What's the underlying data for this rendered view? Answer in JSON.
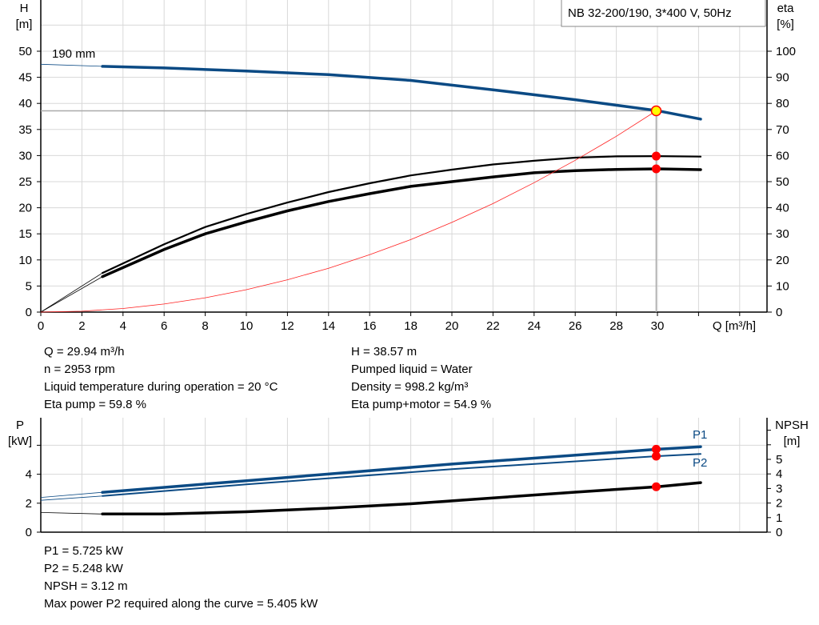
{
  "title_box": "NB 32-200/190, 3*400 V, 50Hz",
  "colors": {
    "head": "#0b4a84",
    "efficiency": "#000000",
    "system": "#ff2020",
    "duty_point": "#ff0000",
    "duty_point_fill": "#ffff00",
    "grid": "#d8d8d8"
  },
  "chart_data": [
    {
      "type": "line",
      "xlabel": "Q [m³/h]",
      "ylabel_left": [
        "H",
        "[m]"
      ],
      "ylabel_right": [
        "eta",
        "[%]"
      ],
      "xlim": [
        0,
        35
      ],
      "ylim_left": [
        0,
        55
      ],
      "ylim_right": [
        0,
        110
      ],
      "x_ticks": [
        0,
        2,
        4,
        6,
        8,
        10,
        12,
        14,
        16,
        18,
        20,
        22,
        24,
        26,
        28,
        30
      ],
      "y_ticks_left": [
        0,
        5,
        10,
        15,
        20,
        25,
        30,
        35,
        40,
        45,
        50
      ],
      "y_ticks_right": [
        0,
        10,
        20,
        30,
        40,
        50,
        60,
        70,
        80,
        90,
        100
      ],
      "grid": true,
      "annotation": "190 mm",
      "series": [
        {
          "id": "head",
          "axis": "left",
          "color": "#0b4a84",
          "x": [
            0,
            3,
            6,
            10,
            14,
            18,
            22,
            26,
            30,
            32.1
          ],
          "y": [
            47.5,
            47.1,
            46.8,
            46.2,
            45.5,
            44.4,
            42.6,
            40.7,
            38.6,
            37.0
          ]
        },
        {
          "id": "eta-pump",
          "axis": "right",
          "color": "#000000",
          "x": [
            0,
            3,
            6,
            8,
            10,
            12,
            14,
            16,
            18,
            20,
            22,
            24,
            26,
            28,
            30,
            32.1
          ],
          "y": [
            0,
            15,
            26,
            32.6,
            37.6,
            42,
            46,
            49.4,
            52.4,
            54.6,
            56.6,
            58.0,
            59.2,
            59.7,
            59.8,
            59.6
          ]
        },
        {
          "id": "eta-pump-motor",
          "axis": "right",
          "color": "#000000",
          "x": [
            0,
            3,
            6,
            8,
            10,
            12,
            14,
            16,
            18,
            20,
            22,
            24,
            26,
            28,
            30,
            32.1
          ],
          "y": [
            0,
            13.6,
            24,
            30,
            34.6,
            38.8,
            42.4,
            45.4,
            48.2,
            50.0,
            51.8,
            53.4,
            54.2,
            54.7,
            54.9,
            54.6
          ]
        },
        {
          "id": "system-curve",
          "axis": "left",
          "color": "#ff2020",
          "x": [
            0,
            2,
            4,
            6,
            8,
            10,
            12,
            14,
            16,
            18,
            20,
            22,
            24,
            26,
            28,
            29.94
          ],
          "y": [
            0,
            0.17,
            0.69,
            1.55,
            2.75,
            4.3,
            6.2,
            8.4,
            11.0,
            13.9,
            17.2,
            20.8,
            24.8,
            29.1,
            33.7,
            38.57
          ]
        }
      ],
      "duty_point": {
        "q": 29.94,
        "h": 38.57,
        "eta_pump": 59.8,
        "eta_pump_motor": 54.9
      }
    },
    {
      "type": "line",
      "ylabel_left": [
        "P",
        "[kW]"
      ],
      "ylabel_right": [
        "NPSH",
        "[m]"
      ],
      "xlim": [
        0,
        35
      ],
      "ylim_left": [
        0,
        7.8
      ],
      "ylim_right": [
        0,
        7.7
      ],
      "y_ticks_left": [
        0,
        2,
        4
      ],
      "y_ticks_right": [
        0,
        1,
        2,
        3,
        4,
        5
      ],
      "grid": true,
      "series": [
        {
          "id": "P1",
          "name": "P1",
          "axis": "left",
          "color": "#0b4a84",
          "x": [
            0,
            3,
            10,
            20,
            30,
            32.1
          ],
          "y": [
            2.4,
            2.75,
            3.55,
            4.7,
            5.725,
            5.9
          ]
        },
        {
          "id": "P2",
          "name": "P2",
          "axis": "left",
          "color": "#0b4a84",
          "x": [
            0,
            3,
            10,
            20,
            30,
            32.1
          ],
          "y": [
            2.2,
            2.5,
            3.3,
            4.35,
            5.248,
            5.4
          ]
        },
        {
          "id": "NPSH",
          "axis": "right",
          "color": "#000000",
          "x": [
            0,
            3,
            6,
            10,
            14,
            18,
            22,
            26,
            30,
            32.1
          ],
          "y": [
            1.35,
            1.25,
            1.25,
            1.4,
            1.65,
            1.95,
            2.35,
            2.75,
            3.12,
            3.4
          ]
        }
      ],
      "duty_point": {
        "q": 29.94,
        "p1": 5.725,
        "p2": 5.248,
        "npsh": 3.12
      }
    }
  ],
  "results_top": {
    "left": [
      "Q = 29.94 m³/h",
      "n = 2953 rpm",
      "Liquid temperature during operation = 20 °C",
      "Eta pump = 59.8 %"
    ],
    "right": [
      "H = 38.57 m",
      "Pumped liquid = Water",
      "Density = 998.2 kg/m³",
      "Eta pump+motor = 54.9 %"
    ]
  },
  "results_bottom": [
    "P1 = 5.725 kW",
    "P2 = 5.248 kW",
    "NPSH = 3.12 m",
    "Max power P2 required along the curve = 5.405 kW"
  ]
}
